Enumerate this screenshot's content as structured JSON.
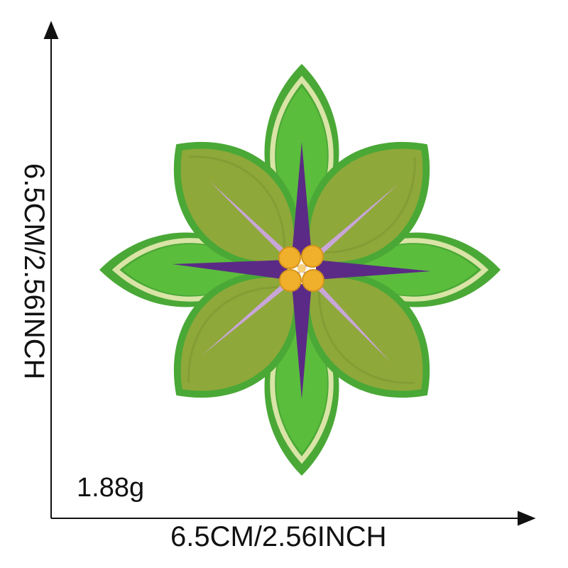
{
  "product": {
    "width_text": "6.5CM/2.56INCH",
    "height_text": "6.5CM/2.56INCH",
    "weight_text": "1.88g"
  },
  "colors": {
    "outer_petal": "#4aa836",
    "outer_petal_inner": "#5bbd3c",
    "petal_outline": "#d9e4a6",
    "inner_petal": "#8fa83a",
    "inner_petal_dark": "#6f8a2a",
    "star_purple": "#5b2a86",
    "star_lavender": "#c8a6d8",
    "center": "#f0b02c",
    "axis": "#111111"
  },
  "icons": [
    "embroidered-flower-patch-image",
    "arrow-up-icon",
    "arrow-right-icon"
  ]
}
